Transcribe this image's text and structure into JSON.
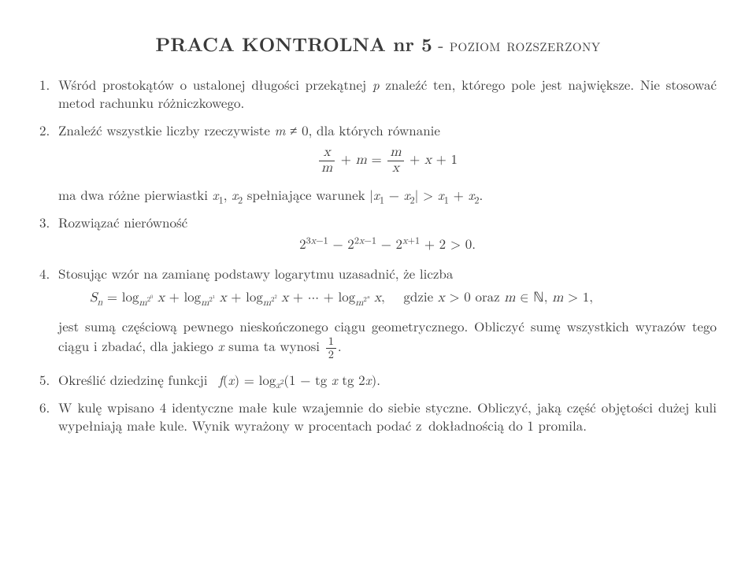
{
  "title": {
    "bold": "PRACA KONTROLNA nr 5",
    "sep": " - ",
    "level": "poziom rozszerzony"
  },
  "p1": "Wśród prostokątów o ustalonej długości przekątnej p znaleźć ten, którego pole jest największe. Nie stosować metod rachunku różniczkowego.",
  "p2": {
    "intro": "Znaleźć wszystkie liczby rzeczywiste m ≠ 0, dla których równanie",
    "after": "ma dwa różne pierwiastki x₁, x₂ spełniające warunek |x₁ − x₂| > x₁ + x₂."
  },
  "p3": "Rozwiązać nierówność",
  "p4": {
    "intro": "Stosując wzór na zamianę podstawy logarytmu uzasadnić, że liczba",
    "cond": "gdzie x > 0 oraz m ∈ ℕ, m > 1,",
    "after": "jest sumą częściową pewnego nieskończonego ciągu geometrycznego. Obliczyć sumę wszystkich wyrazów tego ciągu i zbadać, dla jakiego x suma ta wynosi ½."
  },
  "p5": "Określić dziedzinę funkcji  f(x) = log_{x²}(1 − tg x tg 2x).",
  "p6": "W kulę wpisano 4 identyczne małe kule wzajemnie do siebie styczne. Obliczyć, jaką część objętości dużej kuli wypełniają małe kule. Wynik wyrażony w procentach podać z dokładnością do 1 promila."
}
